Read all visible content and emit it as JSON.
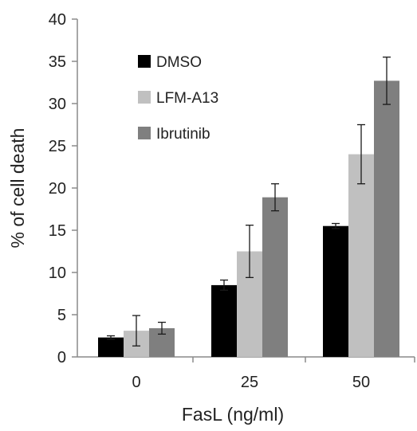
{
  "chart_data": {
    "type": "bar",
    "xlabel": "FasL (ng/ml)",
    "ylabel": "% of cell death",
    "categories": [
      "0",
      "25",
      "50"
    ],
    "ylim": [
      0,
      40
    ],
    "yticks": [
      "0",
      "5",
      "10",
      "15",
      "20",
      "25",
      "30",
      "35",
      "40"
    ],
    "grid": false,
    "legend_position": "top-left",
    "series": [
      {
        "name": "DMSO",
        "color": "#000000",
        "values": [
          2.3,
          8.5,
          15.5
        ],
        "errors": [
          0.2,
          0.6,
          0.3
        ]
      },
      {
        "name": "LFM-A13",
        "color": "#c0c0c0",
        "values": [
          3.1,
          12.5,
          24.0
        ],
        "errors": [
          1.8,
          3.1,
          3.5
        ]
      },
      {
        "name": "Ibrutinib",
        "color": "#7f7f7f",
        "values": [
          3.4,
          18.9,
          32.7
        ],
        "errors": [
          0.7,
          1.6,
          2.8
        ]
      }
    ]
  }
}
